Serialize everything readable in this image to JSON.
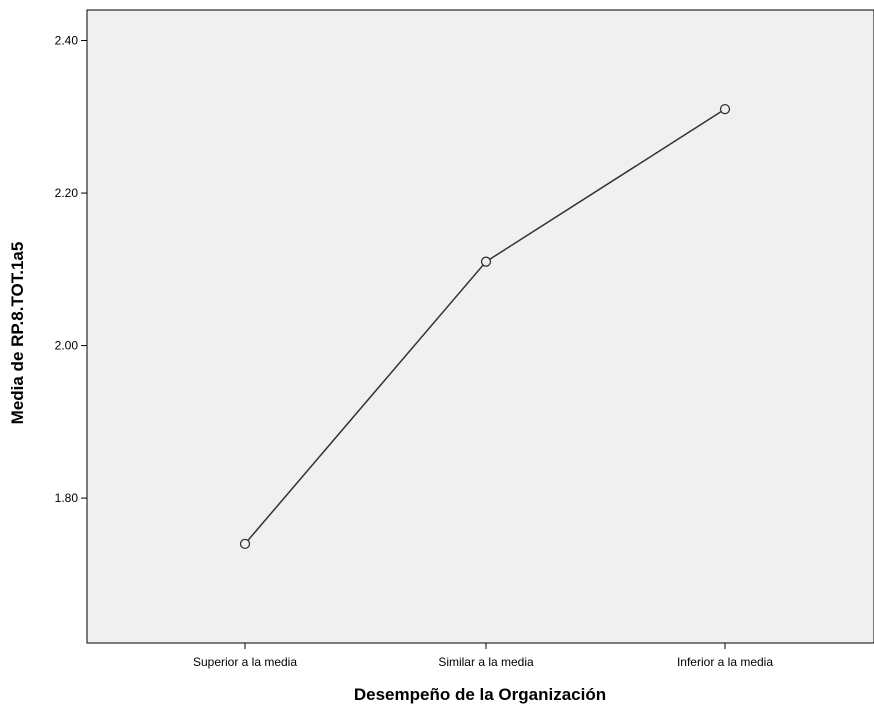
{
  "chart_data": {
    "type": "line",
    "categories": [
      "Superior a la media",
      "Similar a la media",
      "Inferior a la media"
    ],
    "series": [
      {
        "values": [
          1.74,
          2.11,
          2.31
        ]
      }
    ],
    "xlabel": "Desempeño de la Organización",
    "ylabel": "Media de RP.8.TOT.1a5",
    "yticks": [
      "1.80",
      "2.00",
      "2.20",
      "2.40"
    ],
    "ylim": [
      1.61,
      2.44
    ],
    "grid": false,
    "legend": "none",
    "colors": {
      "plot_background": "#f0f0f0",
      "line": "#333333",
      "marker_fill": "#f0f0f0"
    }
  }
}
